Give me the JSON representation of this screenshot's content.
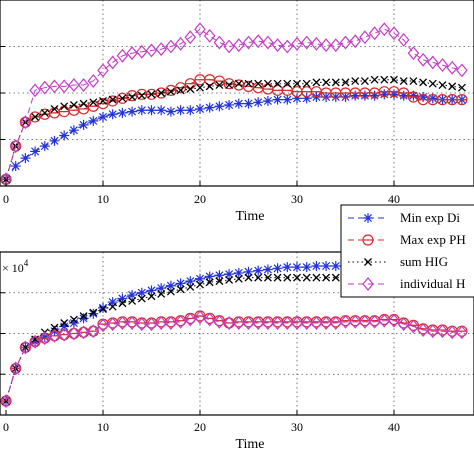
{
  "chart_data": [
    {
      "type": "line",
      "xlabel": "Time",
      "ylabel": "",
      "xlim": [
        0,
        48
      ],
      "ylim": [
        0,
        1.4
      ],
      "x_ticks": [
        0,
        10,
        20,
        30,
        40
      ],
      "grid": true,
      "legend": {
        "placement": "right-edge-overlapping-both-panels",
        "entries": [
          "Min exp Di",
          "Max exp PH",
          "sum HIG",
          "individual H"
        ]
      },
      "series": [
        {
          "name": "Min exp Di",
          "color": "#2333d8",
          "marker": "asterisk",
          "line": "dashed",
          "x": [
            0,
            1,
            2,
            3,
            4,
            5,
            6,
            7,
            8,
            9,
            10,
            11,
            12,
            13,
            14,
            15,
            16,
            17,
            18,
            19,
            20,
            21,
            22,
            23,
            24,
            25,
            26,
            27,
            28,
            29,
            30,
            31,
            32,
            33,
            34,
            35,
            36,
            37,
            38,
            39,
            40,
            41,
            42,
            43,
            44,
            45,
            46,
            47
          ],
          "values": [
            0.05,
            0.15,
            0.21,
            0.26,
            0.3,
            0.34,
            0.38,
            0.42,
            0.46,
            0.49,
            0.52,
            0.54,
            0.55,
            0.56,
            0.57,
            0.57,
            0.57,
            0.56,
            0.57,
            0.57,
            0.58,
            0.59,
            0.6,
            0.61,
            0.62,
            0.62,
            0.63,
            0.64,
            0.65,
            0.65,
            0.66,
            0.66,
            0.67,
            0.67,
            0.67,
            0.67,
            0.68,
            0.68,
            0.68,
            0.69,
            0.69,
            0.68,
            0.68,
            0.67,
            0.66,
            0.65,
            0.65,
            0.65
          ]
        },
        {
          "name": "Max exp PH",
          "color": "#d42a2a",
          "marker": "circle",
          "line": "dashed",
          "x": [
            0,
            1,
            2,
            3,
            4,
            5,
            6,
            7,
            8,
            9,
            10,
            11,
            12,
            13,
            14,
            15,
            16,
            17,
            18,
            19,
            20,
            21,
            22,
            23,
            24,
            25,
            26,
            27,
            28,
            29,
            30,
            31,
            32,
            33,
            34,
            35,
            36,
            37,
            38,
            39,
            40,
            41,
            42,
            43,
            44,
            45,
            46,
            47
          ],
          "values": [
            0.05,
            0.3,
            0.48,
            0.52,
            0.54,
            0.55,
            0.56,
            0.57,
            0.58,
            0.6,
            0.62,
            0.64,
            0.66,
            0.68,
            0.69,
            0.69,
            0.7,
            0.72,
            0.74,
            0.77,
            0.8,
            0.8,
            0.79,
            0.77,
            0.76,
            0.75,
            0.74,
            0.73,
            0.72,
            0.72,
            0.71,
            0.71,
            0.71,
            0.7,
            0.7,
            0.7,
            0.7,
            0.7,
            0.7,
            0.71,
            0.71,
            0.7,
            0.67,
            0.65,
            0.65,
            0.65,
            0.65,
            0.65
          ]
        },
        {
          "name": "sum HIG",
          "color": "#000000",
          "marker": "x",
          "line": "dotted",
          "x": [
            0,
            1,
            2,
            3,
            4,
            5,
            6,
            7,
            8,
            9,
            10,
            11,
            12,
            13,
            14,
            15,
            16,
            17,
            18,
            19,
            20,
            21,
            22,
            23,
            24,
            25,
            26,
            27,
            28,
            29,
            30,
            31,
            32,
            33,
            34,
            35,
            36,
            37,
            38,
            39,
            40,
            41,
            42,
            43,
            44,
            45,
            46,
            47
          ],
          "values": [
            0.05,
            0.3,
            0.48,
            0.52,
            0.55,
            0.58,
            0.6,
            0.61,
            0.62,
            0.63,
            0.64,
            0.65,
            0.66,
            0.67,
            0.68,
            0.69,
            0.7,
            0.71,
            0.72,
            0.73,
            0.74,
            0.75,
            0.76,
            0.76,
            0.77,
            0.77,
            0.77,
            0.77,
            0.77,
            0.77,
            0.77,
            0.77,
            0.78,
            0.78,
            0.78,
            0.78,
            0.79,
            0.79,
            0.8,
            0.8,
            0.8,
            0.79,
            0.79,
            0.78,
            0.77,
            0.76,
            0.75,
            0.74
          ]
        },
        {
          "name": "individual H",
          "color": "#c43bc4",
          "marker": "diamond",
          "line": "dashed",
          "x": [
            0,
            1,
            2,
            3,
            4,
            5,
            6,
            7,
            8,
            9,
            10,
            11,
            12,
            13,
            14,
            15,
            16,
            17,
            18,
            19,
            20,
            21,
            22,
            23,
            24,
            25,
            26,
            27,
            28,
            29,
            30,
            31,
            32,
            33,
            34,
            35,
            36,
            37,
            38,
            39,
            40,
            41,
            42,
            43,
            44,
            45,
            46,
            47
          ],
          "values": [
            0.05,
            0.3,
            0.48,
            0.72,
            0.74,
            0.75,
            0.75,
            0.76,
            0.76,
            0.79,
            0.87,
            0.93,
            0.98,
            1.0,
            1.01,
            1.02,
            1.03,
            1.05,
            1.07,
            1.12,
            1.18,
            1.13,
            1.08,
            1.05,
            1.06,
            1.08,
            1.09,
            1.08,
            1.06,
            1.05,
            1.07,
            1.08,
            1.07,
            1.06,
            1.06,
            1.08,
            1.09,
            1.12,
            1.15,
            1.18,
            1.15,
            1.1,
            1.0,
            0.95,
            0.93,
            0.91,
            0.89,
            0.87
          ]
        }
      ]
    },
    {
      "type": "line",
      "xlabel": "Time",
      "ylabel": "",
      "exponent_label": "× 10",
      "exponent_power": "4",
      "xlim": [
        0,
        48
      ],
      "ylim": [
        0,
        1.4
      ],
      "x_ticks": [
        0,
        10,
        20,
        30,
        40
      ],
      "grid": true,
      "series": [
        {
          "name": "Min exp Di",
          "color": "#2333d8",
          "marker": "asterisk",
          "line": "dashed",
          "x": [
            0,
            1,
            2,
            3,
            4,
            5,
            6,
            7,
            8,
            9,
            10,
            11,
            12,
            13,
            14,
            15,
            16,
            17,
            18,
            19,
            20,
            21,
            22,
            23,
            24,
            25,
            26,
            27,
            28,
            29,
            30,
            31,
            32,
            33,
            34,
            35,
            36,
            37,
            38,
            39,
            40,
            41,
            42,
            43,
            44,
            45,
            46,
            47
          ],
          "values": [
            0.12,
            0.4,
            0.58,
            0.63,
            0.67,
            0.72,
            0.76,
            0.79,
            0.83,
            0.87,
            0.92,
            0.97,
            1.0,
            1.03,
            1.05,
            1.07,
            1.09,
            1.11,
            1.13,
            1.15,
            1.17,
            1.19,
            1.2,
            1.21,
            1.22,
            1.23,
            1.24,
            1.25,
            1.26,
            1.27,
            1.27,
            1.27,
            1.28,
            1.28,
            1.28,
            1.28,
            1.29,
            1.29,
            1.29,
            1.29,
            1.3,
            1.3,
            1.3,
            1.29,
            1.29,
            1.28,
            1.28,
            1.28
          ]
        },
        {
          "name": "Max exp PH",
          "color": "#d42a2a",
          "marker": "circle",
          "line": "dashed",
          "x": [
            0,
            1,
            2,
            3,
            4,
            5,
            6,
            7,
            8,
            9,
            10,
            11,
            12,
            13,
            14,
            15,
            16,
            17,
            18,
            19,
            20,
            21,
            22,
            23,
            24,
            25,
            26,
            27,
            28,
            29,
            30,
            31,
            32,
            33,
            34,
            35,
            36,
            37,
            38,
            39,
            40,
            41,
            42,
            43,
            44,
            45,
            46,
            47
          ],
          "values": [
            0.12,
            0.4,
            0.58,
            0.63,
            0.66,
            0.68,
            0.69,
            0.7,
            0.71,
            0.72,
            0.78,
            0.79,
            0.8,
            0.8,
            0.79,
            0.79,
            0.8,
            0.8,
            0.81,
            0.83,
            0.85,
            0.83,
            0.81,
            0.79,
            0.8,
            0.8,
            0.8,
            0.8,
            0.8,
            0.8,
            0.8,
            0.8,
            0.8,
            0.8,
            0.8,
            0.81,
            0.81,
            0.81,
            0.81,
            0.82,
            0.82,
            0.79,
            0.77,
            0.74,
            0.73,
            0.73,
            0.72,
            0.72
          ]
        },
        {
          "name": "sum HIG",
          "color": "#000000",
          "marker": "x",
          "line": "dotted",
          "x": [
            0,
            1,
            2,
            3,
            4,
            5,
            6,
            7,
            8,
            9,
            10,
            11,
            12,
            13,
            14,
            15,
            16,
            17,
            18,
            19,
            20,
            21,
            22,
            23,
            24,
            25,
            26,
            27,
            28,
            29,
            30,
            31,
            32,
            33,
            34,
            35,
            36,
            37,
            38,
            39,
            40,
            41,
            42,
            43,
            44,
            45,
            46,
            47
          ],
          "values": [
            0.12,
            0.4,
            0.58,
            0.65,
            0.71,
            0.75,
            0.79,
            0.82,
            0.85,
            0.88,
            0.91,
            0.93,
            0.96,
            0.98,
            1.0,
            1.02,
            1.04,
            1.06,
            1.08,
            1.1,
            1.12,
            1.14,
            1.15,
            1.16,
            1.17,
            1.18,
            1.18,
            1.18,
            1.18,
            1.18,
            1.18,
            1.18,
            1.18,
            1.18,
            1.18,
            1.18,
            1.18,
            1.18,
            1.18,
            1.18,
            1.18,
            1.17,
            1.16,
            1.15,
            1.14,
            1.13,
            1.12,
            1.12
          ]
        },
        {
          "name": "individual H",
          "color": "#c43bc4",
          "marker": "diamond",
          "line": "dashed",
          "x": [
            0,
            1,
            2,
            3,
            4,
            5,
            6,
            7,
            8,
            9,
            10,
            11,
            12,
            13,
            14,
            15,
            16,
            17,
            18,
            19,
            20,
            21,
            22,
            23,
            24,
            25,
            26,
            27,
            28,
            29,
            30,
            31,
            32,
            33,
            34,
            35,
            36,
            37,
            38,
            39,
            40,
            41,
            42,
            43,
            44,
            45,
            46,
            47
          ],
          "values": [
            0.12,
            0.4,
            0.58,
            0.63,
            0.66,
            0.68,
            0.69,
            0.7,
            0.71,
            0.72,
            0.77,
            0.78,
            0.79,
            0.79,
            0.78,
            0.78,
            0.79,
            0.79,
            0.8,
            0.82,
            0.84,
            0.82,
            0.8,
            0.79,
            0.79,
            0.79,
            0.79,
            0.79,
            0.79,
            0.79,
            0.79,
            0.79,
            0.79,
            0.79,
            0.79,
            0.8,
            0.8,
            0.8,
            0.8,
            0.81,
            0.81,
            0.78,
            0.76,
            0.73,
            0.72,
            0.72,
            0.71,
            0.71
          ]
        }
      ]
    }
  ]
}
